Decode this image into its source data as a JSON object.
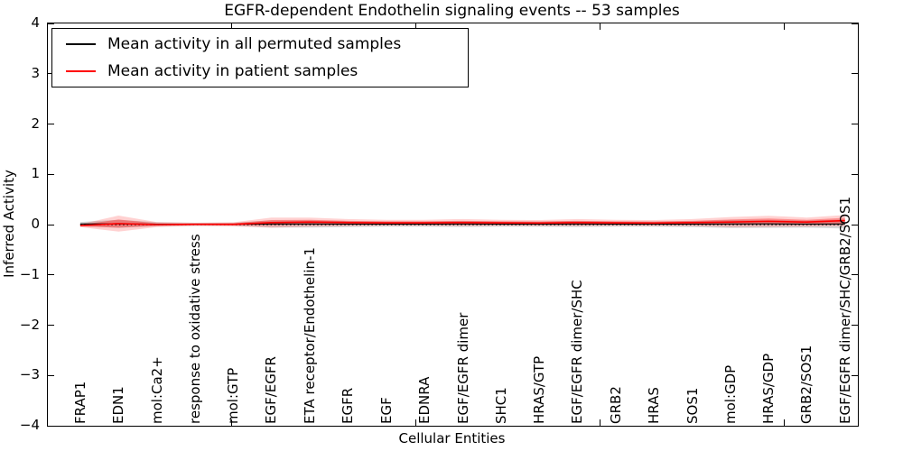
{
  "figure": {
    "title": "EGFR-dependent Endothelin signaling events -- 53 samples"
  },
  "axes": {
    "xlabel": "Cellular Entities",
    "ylabel": "Inferred Activity",
    "ytick_labels": [
      "4",
      "3",
      "2",
      "1",
      "0",
      "−1",
      "−2",
      "−3",
      "−4"
    ]
  },
  "legend": {
    "items": [
      {
        "label": "Mean activity in all permuted samples",
        "color": "#000000"
      },
      {
        "label": "Mean activity in patient samples",
        "color": "#ff0000"
      }
    ]
  },
  "chart_data": {
    "type": "line",
    "title": "EGFR-dependent Endothelin signaling events -- 53 samples",
    "xlabel": "Cellular Entities",
    "ylabel": "Inferred Activity",
    "ylim": [
      -4,
      4
    ],
    "xlim": [
      0,
      22
    ],
    "yticks": [
      4,
      3,
      2,
      1,
      0,
      -1,
      -2,
      -3,
      -4
    ],
    "xticks_unlabeled": [
      5,
      10,
      15,
      20
    ],
    "grid": false,
    "legend_position": "upper left",
    "zero_line": {
      "y": 0,
      "style": "dotted",
      "color": "#000000"
    },
    "categories": [
      "FRAP1",
      "EDN1",
      "mol:Ca2+",
      "response to oxidative stress",
      "mol:GTP",
      "EGF/EGFR",
      "ETA receptor/Endothelin-1",
      "EGFR",
      "EGF",
      "EDNRA",
      "EGF/EGFR dimer",
      "SHC1",
      "HRAS/GTP",
      "EGF/EGFR dimer/SHC",
      "GRB2",
      "HRAS",
      "SOS1",
      "mol:GDP",
      "HRAS/GDP",
      "GRB2/SOS1",
      "EGF/EGFR dimer/SHC/GRB2/SOS1"
    ],
    "x_positions": [
      0.88,
      1.92,
      2.96,
      4.0,
      5.04,
      6.07,
      7.11,
      8.15,
      9.19,
      10.23,
      11.27,
      12.31,
      13.34,
      14.38,
      15.42,
      16.46,
      17.5,
      18.54,
      19.58,
      20.61,
      21.65
    ],
    "series": [
      {
        "name": "Mean activity in all permuted samples",
        "color": "#000000",
        "band_color": "#999999",
        "values": [
          0.012,
          0.015,
          0.008,
          0.006,
          0.008,
          0.012,
          0.012,
          0.01,
          0.01,
          0.01,
          0.012,
          0.01,
          0.01,
          0.012,
          0.01,
          0.01,
          0.01,
          0.012,
          0.014,
          0.01,
          0.012
        ],
        "band_halfwidth": [
          0.04,
          0.08,
          0.04,
          0.03,
          0.03,
          0.07,
          0.07,
          0.06,
          0.05,
          0.05,
          0.06,
          0.05,
          0.05,
          0.06,
          0.05,
          0.05,
          0.06,
          0.08,
          0.08,
          0.07,
          0.09
        ]
      },
      {
        "name": "Mean activity in patient samples",
        "color": "#ff0000",
        "band_color": "#ff0000",
        "values": [
          -0.02,
          0.02,
          0.0,
          0.005,
          0.005,
          0.04,
          0.05,
          0.04,
          0.035,
          0.035,
          0.04,
          0.035,
          0.03,
          0.04,
          0.035,
          0.03,
          0.04,
          0.05,
          0.065,
          0.05,
          0.08
        ],
        "band_halfwidth": [
          0.03,
          0.16,
          0.05,
          0.03,
          0.04,
          0.1,
          0.09,
          0.07,
          0.06,
          0.06,
          0.07,
          0.06,
          0.06,
          0.07,
          0.06,
          0.06,
          0.07,
          0.1,
          0.11,
          0.09,
          0.11
        ]
      }
    ]
  }
}
